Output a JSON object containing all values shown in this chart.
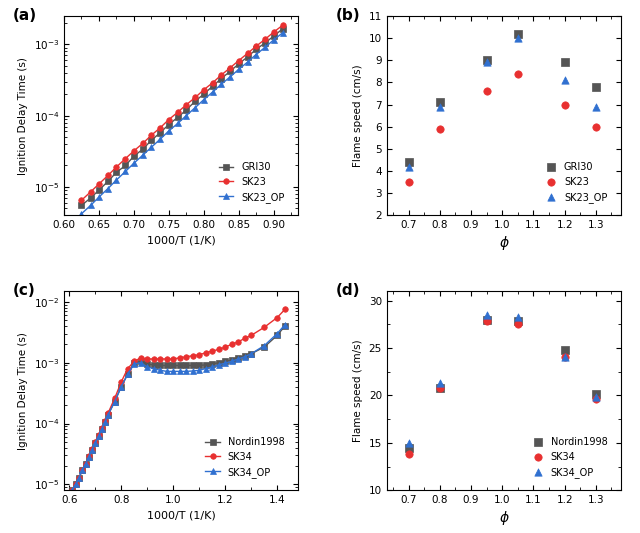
{
  "panel_a": {
    "title": "(a)",
    "xlabel": "1000/T (1/K)",
    "ylabel": "Ignition Delay Time (s)",
    "xmin": 0.6,
    "xmax": 0.935,
    "ymin": 4e-06,
    "ymax": 0.0025,
    "GRI30_x": [
      0.625,
      0.638,
      0.65,
      0.663,
      0.675,
      0.688,
      0.7,
      0.713,
      0.725,
      0.738,
      0.75,
      0.763,
      0.775,
      0.788,
      0.8,
      0.813,
      0.825,
      0.838,
      0.85,
      0.863,
      0.875,
      0.888,
      0.9,
      0.913
    ],
    "GRI30_y": [
      5.5e-06,
      7e-06,
      9e-06,
      1.2e-05,
      1.6e-05,
      2e-05,
      2.7e-05,
      3.4e-05,
      4.5e-05,
      5.8e-05,
      7.5e-05,
      9.5e-05,
      0.00012,
      0.00016,
      0.0002,
      0.00026,
      0.00033,
      0.00042,
      0.00053,
      0.00067,
      0.00085,
      0.00105,
      0.0013,
      0.00165
    ],
    "SK23_x": [
      0.625,
      0.638,
      0.65,
      0.663,
      0.675,
      0.688,
      0.7,
      0.713,
      0.725,
      0.738,
      0.75,
      0.763,
      0.775,
      0.788,
      0.8,
      0.813,
      0.825,
      0.838,
      0.85,
      0.863,
      0.875,
      0.888,
      0.9,
      0.913
    ],
    "SK23_y": [
      6.5e-06,
      8.5e-06,
      1.1e-05,
      1.45e-05,
      1.9e-05,
      2.5e-05,
      3.2e-05,
      4.1e-05,
      5.3e-05,
      6.8e-05,
      8.8e-05,
      0.000112,
      0.000142,
      0.00018,
      0.00023,
      0.00029,
      0.00037,
      0.00047,
      0.00059,
      0.00075,
      0.00094,
      0.00118,
      0.00148,
      0.00185
    ],
    "SK23OP_x": [
      0.625,
      0.638,
      0.65,
      0.663,
      0.675,
      0.688,
      0.7,
      0.713,
      0.725,
      0.738,
      0.75,
      0.763,
      0.775,
      0.788,
      0.8,
      0.813,
      0.825,
      0.838,
      0.85,
      0.863,
      0.875,
      0.888,
      0.9,
      0.913
    ],
    "SK23OP_y": [
      4.2e-06,
      5.5e-06,
      7.2e-06,
      9.5e-06,
      1.25e-05,
      1.65e-05,
      2.15e-05,
      2.8e-05,
      3.6e-05,
      4.7e-05,
      6.1e-05,
      7.8e-05,
      0.0001,
      0.00013,
      0.000167,
      0.000215,
      0.000275,
      0.00035,
      0.000445,
      0.000565,
      0.00072,
      0.00091,
      0.00115,
      0.00145
    ]
  },
  "panel_b": {
    "title": "(b)",
    "xlabel": "ϕ",
    "ylabel": "Flame speed (cm/s)",
    "xmin": 0.63,
    "xmax": 1.38,
    "ymin": 2,
    "ymax": 11,
    "GRI30_phi": [
      0.7,
      0.8,
      0.95,
      1.05,
      1.2,
      1.3
    ],
    "GRI30_v": [
      4.4,
      7.1,
      9.0,
      10.2,
      8.9,
      7.8
    ],
    "SK23_phi": [
      0.7,
      0.8,
      0.95,
      1.05,
      1.2,
      1.3
    ],
    "SK23_v": [
      3.5,
      5.9,
      7.6,
      8.4,
      7.0,
      6.0
    ],
    "SK23OP_phi": [
      0.7,
      0.8,
      0.95,
      1.05,
      1.2,
      1.3
    ],
    "SK23OP_v": [
      4.2,
      6.9,
      8.9,
      10.0,
      8.1,
      6.9
    ]
  },
  "panel_c": {
    "title": "(c)",
    "xlabel": "1000/T (1/K)",
    "ylabel": "Ignition Delay Time (s)",
    "xmin": 0.58,
    "xmax": 1.48,
    "ymin": 8e-06,
    "ymax": 0.015,
    "Nordin_x": [
      0.61,
      0.625,
      0.638,
      0.65,
      0.663,
      0.675,
      0.688,
      0.7,
      0.713,
      0.725,
      0.738,
      0.75,
      0.775,
      0.8,
      0.825,
      0.85,
      0.875,
      0.9,
      0.925,
      0.95,
      0.975,
      1.0,
      1.025,
      1.05,
      1.075,
      1.1,
      1.125,
      1.15,
      1.175,
      1.2,
      1.225,
      1.25,
      1.275,
      1.3,
      1.35,
      1.4,
      1.43
    ],
    "Nordin_y": [
      8e-06,
      1e-05,
      1.3e-05,
      1.7e-05,
      2.2e-05,
      2.8e-05,
      3.7e-05,
      4.8e-05,
      6.2e-05,
      8e-05,
      0.000105,
      0.00014,
      0.00023,
      0.0004,
      0.00065,
      0.00098,
      0.00105,
      0.00095,
      0.00092,
      0.0009,
      0.0009,
      0.0009,
      0.0009,
      0.0009,
      0.0009,
      0.0009,
      0.00092,
      0.00095,
      0.001,
      0.00105,
      0.0011,
      0.0012,
      0.0013,
      0.0014,
      0.0018,
      0.0028,
      0.004
    ],
    "SK34_x": [
      0.61,
      0.625,
      0.638,
      0.65,
      0.663,
      0.675,
      0.688,
      0.7,
      0.713,
      0.725,
      0.738,
      0.75,
      0.775,
      0.8,
      0.825,
      0.85,
      0.875,
      0.9,
      0.925,
      0.95,
      0.975,
      1.0,
      1.025,
      1.05,
      1.075,
      1.1,
      1.125,
      1.15,
      1.175,
      1.2,
      1.225,
      1.25,
      1.275,
      1.3,
      1.35,
      1.4,
      1.43
    ],
    "SK34_y": [
      8e-06,
      1e-05,
      1.3e-05,
      1.7e-05,
      2.2e-05,
      2.9e-05,
      3.8e-05,
      5e-05,
      6.5e-05,
      8.5e-05,
      0.00011,
      0.00015,
      0.00026,
      0.00048,
      0.0008,
      0.00105,
      0.0012,
      0.00115,
      0.00115,
      0.00115,
      0.00115,
      0.00115,
      0.0012,
      0.00125,
      0.0013,
      0.00135,
      0.00145,
      0.00155,
      0.00165,
      0.0018,
      0.002,
      0.0022,
      0.0025,
      0.0028,
      0.0038,
      0.0055,
      0.0075
    ],
    "SK34OP_x": [
      0.61,
      0.625,
      0.638,
      0.65,
      0.663,
      0.675,
      0.688,
      0.7,
      0.713,
      0.725,
      0.738,
      0.75,
      0.775,
      0.8,
      0.825,
      0.85,
      0.875,
      0.9,
      0.925,
      0.95,
      0.975,
      1.0,
      1.025,
      1.05,
      1.075,
      1.1,
      1.125,
      1.15,
      1.175,
      1.2,
      1.225,
      1.25,
      1.275,
      1.3,
      1.35,
      1.4,
      1.43
    ],
    "SK34OP_y": [
      8e-06,
      1e-05,
      1.3e-05,
      1.7e-05,
      2.2e-05,
      2.8e-05,
      3.7e-05,
      4.8e-05,
      6.2e-05,
      8e-05,
      0.000105,
      0.00014,
      0.00023,
      0.0004,
      0.00065,
      0.00095,
      0.001,
      0.00085,
      0.0008,
      0.00075,
      0.00072,
      0.00072,
      0.00072,
      0.00072,
      0.00073,
      0.00075,
      0.0008,
      0.00085,
      0.00092,
      0.00098,
      0.00105,
      0.00115,
      0.00125,
      0.0014,
      0.0019,
      0.003,
      0.0042
    ]
  },
  "panel_d": {
    "title": "(d)",
    "xlabel": "ϕ",
    "ylabel": "Flame speed (cm/s)",
    "xmin": 0.63,
    "xmax": 1.38,
    "ymin": 10,
    "ymax": 31,
    "Nordin_phi": [
      0.7,
      0.8,
      0.95,
      1.05,
      1.2,
      1.3
    ],
    "Nordin_v": [
      14.5,
      20.8,
      27.9,
      27.8,
      24.8,
      20.2
    ],
    "SK34_phi": [
      0.7,
      0.8,
      0.95,
      1.05,
      1.2,
      1.3
    ],
    "SK34_v": [
      13.8,
      20.8,
      27.8,
      27.5,
      24.0,
      19.6
    ],
    "SK34OP_phi": [
      0.7,
      0.8,
      0.95,
      1.05,
      1.2,
      1.3
    ],
    "SK34OP_v": [
      15.0,
      21.3,
      28.5,
      28.3,
      24.0,
      19.8
    ]
  },
  "colors": {
    "GRI30": "#555555",
    "SK23": "#e83030",
    "SK23OP": "#3070d0",
    "Nordin": "#555555",
    "SK34": "#e83030",
    "SK34OP": "#3070d0"
  }
}
